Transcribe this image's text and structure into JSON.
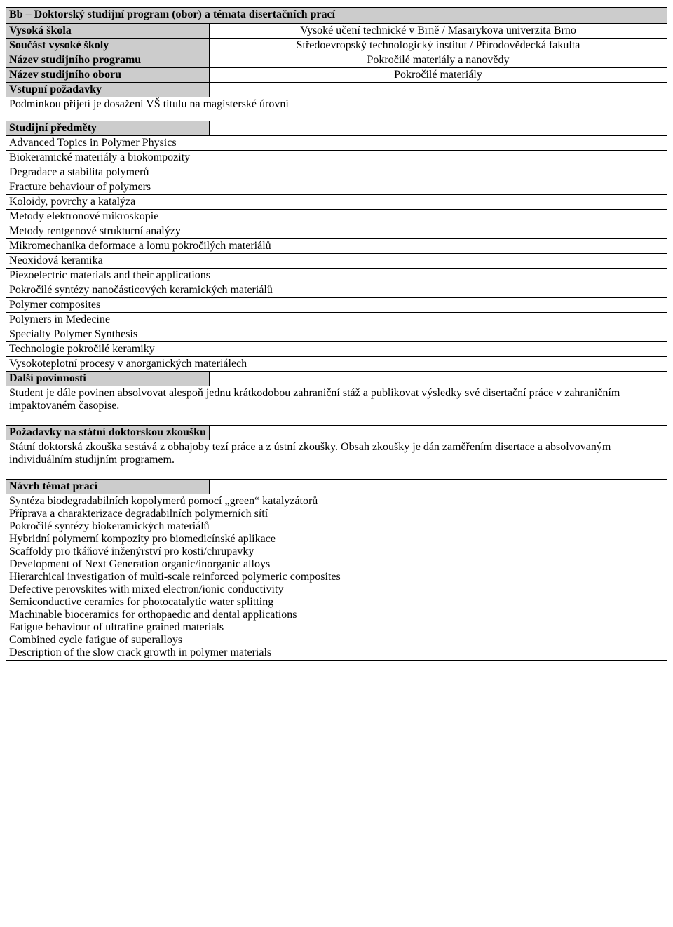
{
  "header": "Bb – Doktorský studijní program (obor) a témata disertačních prací",
  "rows": {
    "r1": {
      "label": "Vysoká škola",
      "value": "Vysoké učení technické v Brně / Masarykova univerzita Brno"
    },
    "r2": {
      "label": "Součást vysoké školy",
      "value": "Středoevropský technologický institut / Přírodovědecká fakulta"
    },
    "r3": {
      "label": "Název studijního programu",
      "value": "Pokročilé materiály a nanovědy"
    },
    "r4": {
      "label": "Název studijního oboru",
      "value": "Pokročilé materiály"
    },
    "r5": {
      "label": "Vstupní požadavky"
    }
  },
  "entry_req": "Podmínkou přijetí je dosažení VŠ titulu na magisterské úrovni",
  "subjects_label": "Studijní předměty",
  "subjects": [
    "Advanced Topics in Polymer Physics",
    "Biokeramické materiály a biokompozity",
    "Degradace a stabilita polymerů",
    "Fracture behaviour of polymers",
    "Koloidy, povrchy a katalýza",
    "Metody elektronové mikroskopie",
    "Metody rentgenové strukturní analýzy",
    "Mikromechanika deformace a lomu pokročilých materiálů",
    "Neoxidová keramika",
    "Piezoelectric materials and their applications",
    "Pokročilé syntézy nanočásticových keramických materiálů",
    "Polymer composites",
    "Polymers in Medecine",
    "Specialty Polymer Synthesis",
    "Technologie pokročilé keramiky",
    "Vysokoteplotní procesy v anorganických materiálech"
  ],
  "other_duties_label": "Další povinnosti",
  "other_duties_text": "Student je dále povinen absolvovat alespoň jednu krátkodobou zahraniční stáž a publikovat výsledky své disertační práce v zahraničním impaktovaném časopise.",
  "exam_label": "Požadavky na státní doktorskou zkoušku",
  "exam_text": "Státní doktorská zkouška sestává z obhajoby tezí práce a z ústní zkoušky. Obsah zkoušky je dán zaměřením disertace a absolvovaným individuálním studijním programem.",
  "topics_label": "Návrh témat prací",
  "topics": [
    "Syntéza biodegradabilních kopolymerů pomocí „green“ katalyzátorů",
    "Příprava a charakterizace degradabilních polymerních sítí",
    "Pokročilé syntézy biokeramických materiálů",
    "Hybridní polymerní kompozity pro biomedicínské aplikace",
    "Scaffoldy pro tkáňové inženýrství pro kosti/chrupavky",
    "Development of Next Generation organic/inorganic alloys",
    "Hierarchical investigation of multi-scale reinforced polymeric composites",
    "Defective perovskites with mixed electron/ionic conductivity",
    "Semiconductive ceramics for photocatalytic water splitting",
    "Machinable bioceramics for orthopaedic and dental applications",
    "Fatigue behaviour of ultrafine grained materials",
    "Combined cycle fatigue of superalloys",
    "Description of the slow crack growth in polymer materials"
  ]
}
